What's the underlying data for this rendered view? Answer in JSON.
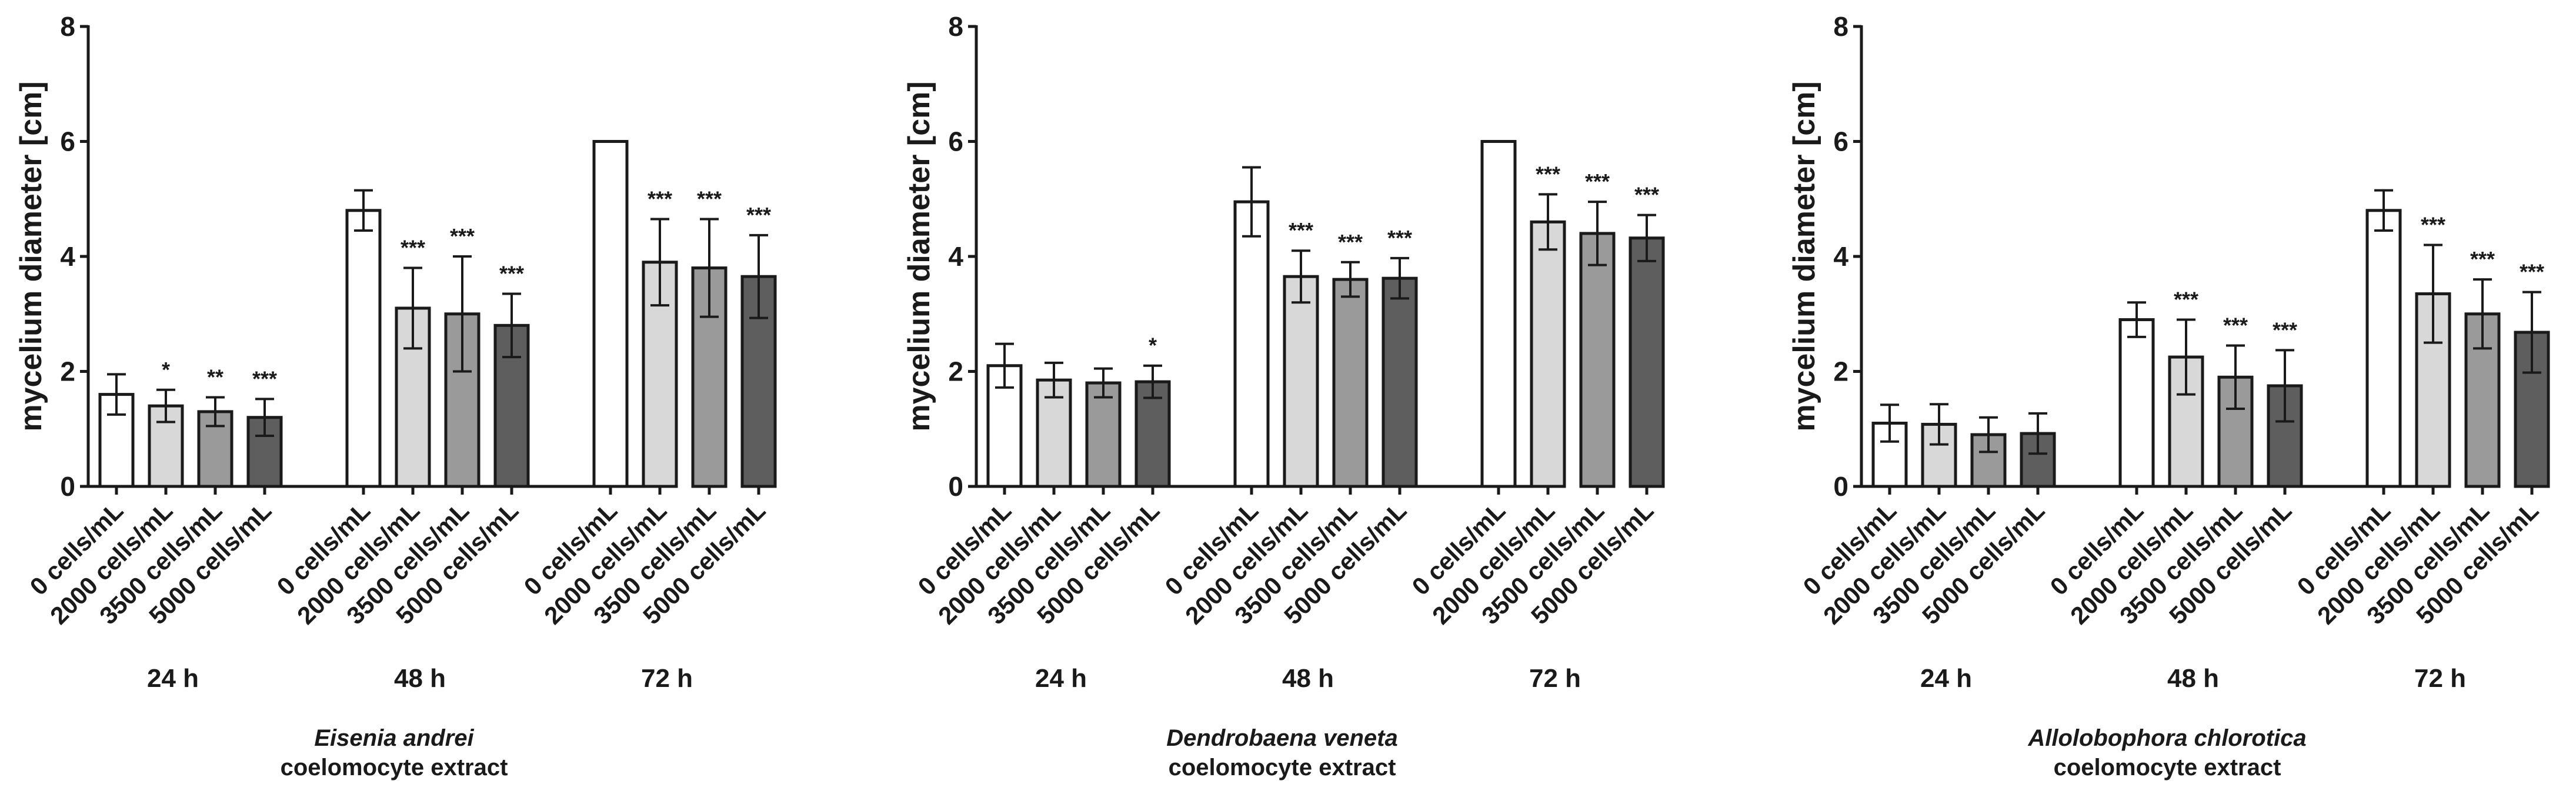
{
  "chart_data": [
    {
      "type": "bar",
      "title": "",
      "caption_species": "Eisenia andrei",
      "caption_sub": "coelomocyte extract",
      "ylabel": "mycelium diameter [cm]",
      "ylim": [
        0,
        8
      ],
      "yticks": [
        "0",
        "2",
        "4",
        "6",
        "8"
      ],
      "groups": [
        "24 h",
        "48 h",
        "72 h"
      ],
      "categories": [
        "0 cells/mL",
        "2000 cells/mL",
        "3500 cells/mL",
        "5000 cells/mL"
      ],
      "fill_colors": [
        "#ffffff",
        "#d8d8d8",
        "#9a9a9a",
        "#5e5e5e"
      ],
      "series": [
        {
          "group": "24 h",
          "values": [
            1.6,
            1.4,
            1.3,
            1.2
          ],
          "errors": [
            0.35,
            0.28,
            0.25,
            0.32
          ],
          "sig": [
            "",
            "*",
            "**",
            "***"
          ]
        },
        {
          "group": "48 h",
          "values": [
            4.8,
            3.1,
            3.0,
            2.8
          ],
          "errors": [
            0.35,
            0.7,
            1.0,
            0.55
          ],
          "sig": [
            "",
            "***",
            "***",
            "***"
          ]
        },
        {
          "group": "72 h",
          "values": [
            6.0,
            3.9,
            3.8,
            3.65
          ],
          "errors": [
            0.0,
            0.75,
            0.85,
            0.72
          ],
          "sig": [
            "",
            "***",
            "***",
            "***"
          ]
        }
      ]
    },
    {
      "type": "bar",
      "title": "",
      "caption_species": "Dendrobaena veneta",
      "caption_sub": "coelomocyte extract",
      "ylabel": "mycelium diameter [cm]",
      "ylim": [
        0,
        8
      ],
      "yticks": [
        "0",
        "2",
        "4",
        "6",
        "8"
      ],
      "groups": [
        "24 h",
        "48 h",
        "72 h"
      ],
      "categories": [
        "0 cells/mL",
        "2000 cells/mL",
        "3500 cells/mL",
        "5000 cells/mL"
      ],
      "fill_colors": [
        "#ffffff",
        "#d8d8d8",
        "#9a9a9a",
        "#5e5e5e"
      ],
      "series": [
        {
          "group": "24 h",
          "values": [
            2.1,
            1.85,
            1.8,
            1.82
          ],
          "errors": [
            0.38,
            0.3,
            0.25,
            0.28
          ],
          "sig": [
            "",
            "",
            "",
            "*"
          ]
        },
        {
          "group": "48 h",
          "values": [
            4.95,
            3.65,
            3.6,
            3.62
          ],
          "errors": [
            0.6,
            0.45,
            0.3,
            0.35
          ],
          "sig": [
            "",
            "***",
            "***",
            "***"
          ]
        },
        {
          "group": "72 h",
          "values": [
            6.0,
            4.6,
            4.4,
            4.32
          ],
          "errors": [
            0.0,
            0.48,
            0.55,
            0.4
          ],
          "sig": [
            "",
            "***",
            "***",
            "***"
          ]
        }
      ]
    },
    {
      "type": "bar",
      "title": "",
      "caption_species": "Allolobophora chlorotica",
      "caption_sub": "coelomocyte extract",
      "ylabel": "mycelium diameter [cm]",
      "ylim": [
        0,
        8
      ],
      "yticks": [
        "0",
        "2",
        "4",
        "6",
        "8"
      ],
      "groups": [
        "24 h",
        "48 h",
        "72 h"
      ],
      "categories": [
        "0 cells/mL",
        "2000 cells/mL",
        "3500 cells/mL",
        "5000 cells/mL"
      ],
      "fill_colors": [
        "#ffffff",
        "#d8d8d8",
        "#9a9a9a",
        "#5e5e5e"
      ],
      "series": [
        {
          "group": "24 h",
          "values": [
            1.1,
            1.08,
            0.9,
            0.92
          ],
          "errors": [
            0.32,
            0.35,
            0.3,
            0.35
          ],
          "sig": [
            "",
            "",
            "",
            ""
          ]
        },
        {
          "group": "48 h",
          "values": [
            2.9,
            2.25,
            1.9,
            1.75
          ],
          "errors": [
            0.3,
            0.65,
            0.55,
            0.62
          ],
          "sig": [
            "",
            "***",
            "***",
            "***"
          ]
        },
        {
          "group": "72 h",
          "values": [
            4.8,
            3.35,
            3.0,
            2.68
          ],
          "errors": [
            0.35,
            0.85,
            0.6,
            0.7
          ],
          "sig": [
            "",
            "***",
            "***",
            "***"
          ]
        }
      ]
    }
  ]
}
